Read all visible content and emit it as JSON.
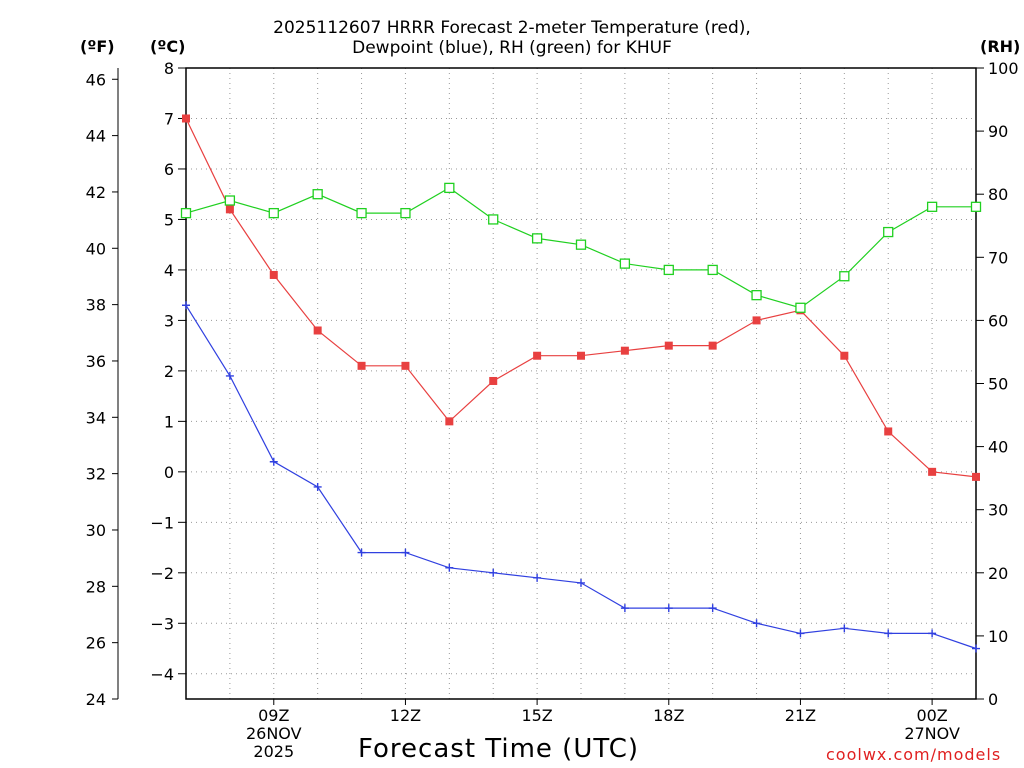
{
  "titles": {
    "line1": "2025112607 HRRR Forecast 2-meter Temperature (red),",
    "line2": "Dewpoint (blue), RH (green) for KHUF"
  },
  "units": {
    "fahrenheit": "(ºF)",
    "celsius": "(ºC)",
    "rh": "(RH)"
  },
  "x_label": "Forecast Time (UTC)",
  "credit": "coolwx.com/models",
  "colors": {
    "temperature": "#e84040",
    "dewpoint": "#3040e0",
    "rh": "#20d020",
    "grid": "#999999"
  },
  "chart_data": {
    "type": "line",
    "title": "2025112607 HRRR Forecast 2-meter Temperature (red), Dewpoint (blue), RH (green) for KHUF",
    "xlabel": "Forecast Time (UTC)",
    "x_hours": [
      7,
      8,
      9,
      10,
      11,
      12,
      13,
      14,
      15,
      16,
      17,
      18,
      19,
      20,
      21,
      22,
      23,
      24,
      25
    ],
    "x_ticks": [
      {
        "hour": 9,
        "lines": [
          "09Z",
          "26NOV",
          "2025"
        ]
      },
      {
        "hour": 12,
        "lines": [
          "12Z"
        ]
      },
      {
        "hour": 15,
        "lines": [
          "15Z"
        ]
      },
      {
        "hour": 18,
        "lines": [
          "18Z"
        ]
      },
      {
        "hour": 21,
        "lines": [
          "21Z"
        ]
      },
      {
        "hour": 24,
        "lines": [
          "00Z",
          "27NOV"
        ]
      }
    ],
    "xlim": [
      7,
      25
    ],
    "axes": {
      "celsius": {
        "range": [
          -4.5,
          8
        ],
        "ticks": [
          -4,
          -3,
          -2,
          -1,
          0,
          1,
          2,
          3,
          4,
          5,
          6,
          7,
          8
        ],
        "tick_labels": [
          "−4",
          "−3",
          "−2",
          "−1",
          "0",
          "1",
          "2",
          "3",
          "4",
          "5",
          "6",
          "7",
          "8"
        ]
      },
      "fahrenheit": {
        "range": [
          24,
          46.4
        ],
        "ticks": [
          24,
          26,
          28,
          30,
          32,
          34,
          36,
          38,
          40,
          42,
          44,
          46
        ],
        "tick_labels": [
          "24",
          "26",
          "28",
          "30",
          "32",
          "34",
          "36",
          "38",
          "40",
          "42",
          "44",
          "46"
        ]
      },
      "rh": {
        "range": [
          0,
          100
        ],
        "ticks": [
          0,
          10,
          20,
          30,
          40,
          50,
          60,
          70,
          80,
          90,
          100
        ],
        "tick_labels": [
          "0",
          "10",
          "20",
          "30",
          "40",
          "50",
          "60",
          "70",
          "80",
          "90",
          "100"
        ]
      }
    },
    "series": [
      {
        "name": "Temperature",
        "axis": "celsius",
        "color": "#e84040",
        "marker": "filled-square",
        "values": [
          7.0,
          5.2,
          3.9,
          2.8,
          2.1,
          2.1,
          1.0,
          1.8,
          2.3,
          2.3,
          2.4,
          2.5,
          2.5,
          3.0,
          3.2,
          2.3,
          0.8,
          0.0,
          -0.1
        ]
      },
      {
        "name": "Dewpoint",
        "axis": "celsius",
        "color": "#3040e0",
        "marker": "plus",
        "values": [
          3.3,
          1.9,
          0.2,
          -0.3,
          -1.6,
          -1.6,
          -1.9,
          -2.0,
          -2.1,
          -2.2,
          -2.7,
          -2.7,
          -2.7,
          -3.0,
          -3.2,
          -3.1,
          -3.2,
          -3.2,
          -3.5
        ]
      },
      {
        "name": "RH",
        "axis": "rh",
        "color": "#20d020",
        "marker": "open-square",
        "values": [
          77,
          79,
          77,
          80,
          77,
          77,
          81,
          76,
          73,
          72,
          69,
          68,
          68,
          64,
          62,
          67,
          74,
          78,
          78
        ]
      }
    ]
  }
}
